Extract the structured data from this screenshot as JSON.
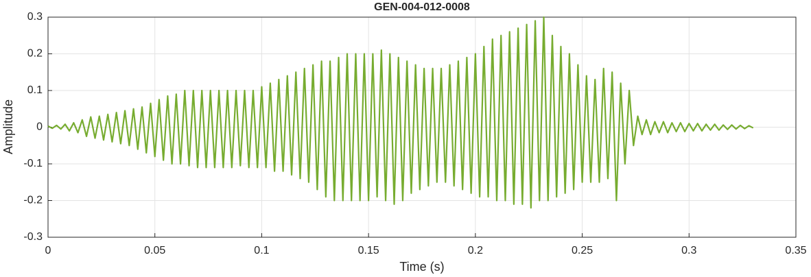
{
  "chart_data": {
    "type": "line",
    "title": "GEN-004-012-0008",
    "x_label": "Time (s)",
    "y_label": "Amplitude",
    "x": [
      0,
      0.002,
      0.004,
      0.006,
      0.008,
      0.01,
      0.012,
      0.014,
      0.016,
      0.018,
      0.02,
      0.022,
      0.024,
      0.026,
      0.028,
      0.03,
      0.032,
      0.034,
      0.036,
      0.038,
      0.04,
      0.042,
      0.044,
      0.046,
      0.048,
      0.05,
      0.052,
      0.054,
      0.056,
      0.058,
      0.06,
      0.062,
      0.064,
      0.066,
      0.068,
      0.07,
      0.072,
      0.074,
      0.076,
      0.078,
      0.08,
      0.082,
      0.084,
      0.086,
      0.088,
      0.09,
      0.092,
      0.094,
      0.096,
      0.098,
      0.1,
      0.102,
      0.104,
      0.106,
      0.108,
      0.11,
      0.112,
      0.114,
      0.116,
      0.118,
      0.12,
      0.122,
      0.124,
      0.126,
      0.128,
      0.13,
      0.132,
      0.134,
      0.136,
      0.138,
      0.14,
      0.142,
      0.144,
      0.146,
      0.148,
      0.15,
      0.152,
      0.154,
      0.156,
      0.158,
      0.16,
      0.162,
      0.164,
      0.166,
      0.168,
      0.17,
      0.172,
      0.174,
      0.176,
      0.178,
      0.18,
      0.182,
      0.184,
      0.186,
      0.188,
      0.19,
      0.192,
      0.194,
      0.196,
      0.198,
      0.2,
      0.202,
      0.204,
      0.206,
      0.208,
      0.21,
      0.212,
      0.214,
      0.216,
      0.218,
      0.22,
      0.222,
      0.224,
      0.226,
      0.228,
      0.23,
      0.232,
      0.234,
      0.236,
      0.238,
      0.24,
      0.242,
      0.244,
      0.246,
      0.248,
      0.25,
      0.252,
      0.254,
      0.256,
      0.258,
      0.26,
      0.262,
      0.264,
      0.266,
      0.268,
      0.27,
      0.272,
      0.274,
      0.276,
      0.278,
      0.28,
      0.282,
      0.284,
      0.286,
      0.288,
      0.29,
      0.292,
      0.294,
      0.296,
      0.298,
      0.3,
      0.302,
      0.304,
      0.306,
      0.308,
      0.31,
      0.312,
      0.314,
      0.316,
      0.318,
      0.32,
      0.322,
      0.324,
      0.326,
      0.328,
      0.33
    ],
    "series": [
      {
        "name": "Amplitude",
        "color": "#77ac30",
        "values": [
          0.003,
          -0.003,
          0.005,
          -0.005,
          0.008,
          -0.01,
          0.012,
          -0.015,
          0.02,
          -0.025,
          0.028,
          -0.03,
          0.03,
          -0.035,
          0.035,
          -0.04,
          0.04,
          -0.045,
          0.045,
          -0.05,
          0.05,
          -0.06,
          0.055,
          -0.07,
          0.065,
          -0.08,
          0.075,
          -0.09,
          0.085,
          -0.1,
          0.09,
          -0.1,
          0.1,
          -0.105,
          0.1,
          -0.11,
          0.1,
          -0.11,
          0.1,
          -0.11,
          0.1,
          -0.11,
          0.1,
          -0.11,
          0.1,
          -0.105,
          0.1,
          -0.11,
          0.1,
          -0.11,
          0.11,
          -0.11,
          0.12,
          -0.12,
          0.13,
          -0.12,
          0.14,
          -0.13,
          0.15,
          -0.14,
          0.16,
          -0.15,
          0.17,
          -0.17,
          0.18,
          -0.19,
          0.18,
          -0.2,
          0.19,
          -0.2,
          0.2,
          -0.2,
          0.2,
          -0.2,
          0.2,
          -0.2,
          0.2,
          -0.19,
          0.21,
          -0.2,
          0.2,
          -0.21,
          0.19,
          -0.2,
          0.18,
          -0.18,
          0.17,
          -0.17,
          0.16,
          -0.16,
          0.16,
          -0.15,
          0.16,
          -0.15,
          0.17,
          -0.16,
          0.18,
          -0.17,
          0.19,
          -0.18,
          0.2,
          -0.19,
          0.22,
          -0.19,
          0.24,
          -0.2,
          0.25,
          -0.2,
          0.26,
          -0.21,
          0.27,
          -0.21,
          0.28,
          -0.22,
          0.29,
          -0.2,
          0.3,
          -0.2,
          0.25,
          -0.19,
          0.22,
          -0.18,
          0.2,
          -0.17,
          0.17,
          -0.15,
          0.14,
          -0.15,
          0.13,
          -0.15,
          0.16,
          -0.14,
          0.15,
          -0.2,
          0.12,
          -0.1,
          0.1,
          -0.05,
          0.03,
          -0.02,
          0.02,
          -0.02,
          0.015,
          -0.015,
          0.015,
          -0.015,
          0.012,
          -0.012,
          0.012,
          -0.012,
          0.01,
          -0.01,
          0.01,
          -0.01,
          0.008,
          -0.008,
          0.008,
          -0.008,
          0.006,
          -0.006,
          0.006,
          -0.005,
          0.005,
          -0.004,
          0.004,
          -0.002
        ]
      }
    ],
    "xlim": [
      0,
      0.35
    ],
    "xticks": [
      0,
      0.05,
      0.1,
      0.15,
      0.2,
      0.25,
      0.3,
      0.35
    ],
    "ylim": [
      -0.3,
      0.3
    ],
    "yticks": [
      -0.3,
      -0.2,
      -0.1,
      0,
      0.1,
      0.2,
      0.3
    ],
    "grid": true
  }
}
